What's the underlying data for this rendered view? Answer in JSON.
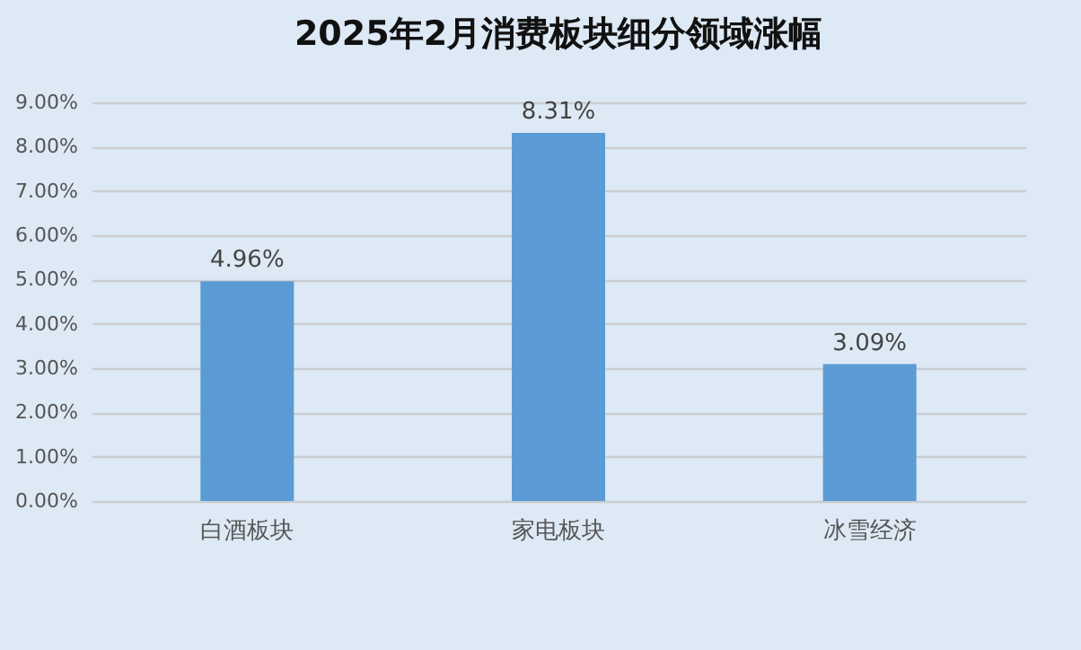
{
  "chart_data": {
    "type": "bar",
    "title": "2025年2月消费板块细分领域涨幅",
    "categories": [
      "白酒板块",
      "家电板块",
      "冰雪经济"
    ],
    "values": [
      4.96,
      8.31,
      3.09
    ],
    "color": "#5b9bd5",
    "value_labels": [
      "4.96%",
      "8.31%",
      "3.09%"
    ],
    "ylim": [
      0,
      9
    ],
    "yticks": [
      {
        "value": 0,
        "label": "0.00%"
      },
      {
        "value": 1,
        "label": "1.00%"
      },
      {
        "value": 2,
        "label": "2.00%"
      },
      {
        "value": 3,
        "label": "3.00%"
      },
      {
        "value": 4,
        "label": "4.00%"
      },
      {
        "value": 5,
        "label": "5.00%"
      },
      {
        "value": 6,
        "label": "6.00%"
      },
      {
        "value": 7,
        "label": "7.00%"
      },
      {
        "value": 8,
        "label": "8.00%"
      },
      {
        "value": 9,
        "label": "9.00%"
      }
    ],
    "grid": "y"
  }
}
